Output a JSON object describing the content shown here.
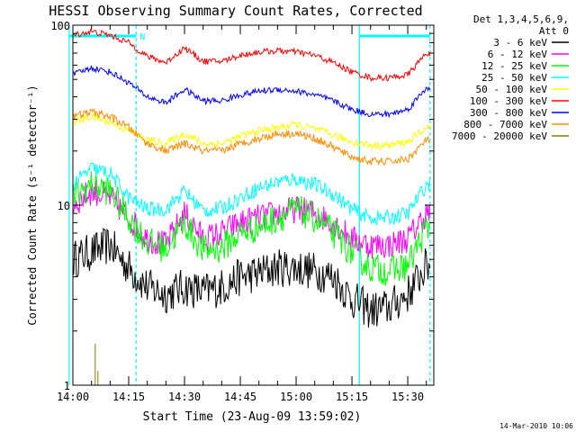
{
  "chart_data": {
    "type": "line",
    "title": "HESSI Observing Summary Count Rates, Corrected",
    "ylabel": "Corrected Count Rate (s⁻¹ detector⁻¹)",
    "xlabel": "Start Time (23-Aug-09 13:59:02)",
    "yscale": "log",
    "ylim": [
      1,
      100
    ],
    "xlim": [
      "14:00",
      "15:37"
    ],
    "x_ticks": [
      "14:00",
      "14:15",
      "14:30",
      "14:45",
      "15:00",
      "15:15",
      "15:30"
    ],
    "y_ticks": [
      "1",
      "10",
      "100"
    ],
    "legend_header": [
      "Det 1,3,4,5,6,9,",
      "Att 0"
    ],
    "legend_position": "top-right",
    "timestamp": "14-Mar-2010 10:06",
    "flags": {
      "night_intervals": [
        [
          "13:59",
          "14:17"
        ],
        [
          "15:17",
          "15:36"
        ]
      ],
      "marker_label": "N"
    },
    "x": [
      "14:00",
      "14:05",
      "14:10",
      "14:15",
      "14:20",
      "14:25",
      "14:30",
      "14:35",
      "14:40",
      "14:45",
      "14:50",
      "14:55",
      "15:00",
      "15:05",
      "15:10",
      "15:15",
      "15:20",
      "15:25",
      "15:30",
      "15:35"
    ],
    "series": [
      {
        "name": "3 - 6 keV",
        "color": "#000000",
        "values": [
          5,
          5.5,
          6,
          4.5,
          3.5,
          3.2,
          3.5,
          3.3,
          3.5,
          4,
          4.2,
          4.5,
          4.5,
          4.3,
          4,
          3,
          2.6,
          2.7,
          3.2,
          4.6
        ]
      },
      {
        "name": "6 - 12 keV",
        "color": "#ff00ff",
        "values": [
          10,
          12,
          11,
          8.5,
          6.5,
          6,
          9,
          6.5,
          7,
          8,
          8.5,
          9,
          9.5,
          9,
          8,
          6.5,
          6,
          6,
          6.5,
          9
        ]
      },
      {
        "name": "12 - 25 keV",
        "color": "#00ff00",
        "values": [
          11,
          13,
          12,
          8.5,
          6.2,
          5.8,
          8,
          5.6,
          5.8,
          7,
          7.6,
          8.5,
          9.5,
          8.5,
          7,
          5.5,
          4.5,
          4.3,
          4.6,
          7.5
        ]
      },
      {
        "name": "25 - 50 keV",
        "color": "#00ffff",
        "values": [
          13,
          16,
          15,
          11,
          9.5,
          9.5,
          12,
          9.3,
          9.6,
          11,
          12.5,
          13.5,
          14,
          13,
          11.5,
          9.5,
          8.5,
          8.5,
          9,
          13
        ]
      },
      {
        "name": "50 - 100 keV",
        "color": "#ffff00",
        "values": [
          29,
          31,
          29,
          26,
          23,
          22,
          25,
          22,
          22,
          24,
          26,
          27,
          28,
          26.5,
          24.5,
          22.5,
          21.5,
          21.5,
          22.5,
          27
        ]
      },
      {
        "name": "100 - 300 keV",
        "color": "#ff0000",
        "values": [
          88,
          92,
          88,
          80,
          67,
          62,
          75,
          63,
          63,
          68,
          71,
          72,
          71,
          68,
          62,
          55,
          51,
          51,
          53,
          70
        ]
      },
      {
        "name": "300 - 800 keV",
        "color": "#0000ff",
        "values": [
          53,
          58,
          55,
          48,
          40,
          37,
          44,
          38,
          38,
          41,
          43,
          44,
          43,
          41,
          38,
          34,
          32,
          32,
          34,
          45
        ]
      },
      {
        "name": "800 - 7000 keV",
        "color": "#ff8c00",
        "values": [
          31,
          33,
          31,
          27,
          22,
          20,
          22,
          20,
          20,
          22,
          23.5,
          25,
          25,
          23.5,
          21,
          18.5,
          17.5,
          17.5,
          18,
          23
        ]
      },
      {
        "name": "7000 - 20000 keV",
        "color": "#808000",
        "values": [
          null,
          1.7,
          1.2,
          null,
          null,
          null,
          null,
          null,
          null,
          null,
          null,
          null,
          null,
          null,
          null,
          null,
          null,
          null,
          null,
          null
        ]
      }
    ]
  }
}
